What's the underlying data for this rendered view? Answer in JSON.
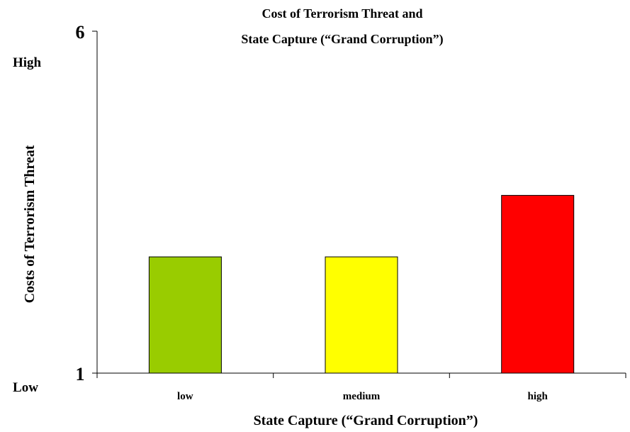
{
  "chart_data": {
    "type": "bar",
    "title_lines": [
      "Cost of Terrorism Threat and",
      "State Capture (“Grand Corruption”)"
    ],
    "xlabel": "State Capture (“Grand Corruption”)",
    "ylabel": "Costs of Terrorism Threat",
    "categories": [
      "low",
      "medium",
      "high"
    ],
    "values": [
      2.7,
      2.7,
      3.6
    ],
    "colors": [
      "#99cc00",
      "#ffff00",
      "#ff0000"
    ],
    "ylim": [
      1,
      6
    ],
    "yticks": [
      "1",
      "6"
    ],
    "y_level_labels": {
      "low": "Low",
      "high": "High"
    },
    "grid": false,
    "legend": "none"
  }
}
